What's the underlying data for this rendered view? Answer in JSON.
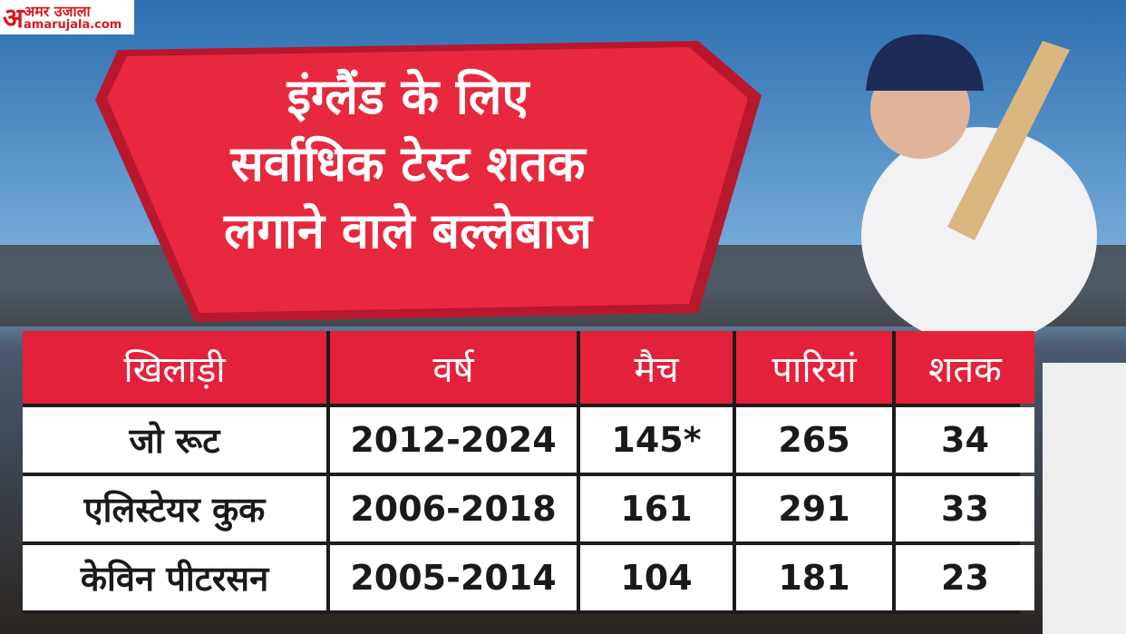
{
  "logo": {
    "letter": "अ",
    "name": "अमर उजाला",
    "site": "amarujala.com"
  },
  "title": [
    "इंग्लैंड के लिए",
    "सर्वाधिक टेस्ट शतक",
    "लगाने वाले बल्लेबाज"
  ],
  "table": {
    "header": [
      "खिलाड़ी",
      "वर्ष",
      "मैच",
      "पारियां",
      "शतक"
    ],
    "rows": [
      [
        "जो रूट",
        "2012-2024",
        "145*",
        "265",
        "34"
      ],
      [
        "एलिस्टेयर कुक",
        "2006-2018",
        "161",
        "291",
        "33"
      ],
      [
        "केविन पीटरसन",
        "2005-2014",
        "104",
        "181",
        "23"
      ]
    ]
  }
}
